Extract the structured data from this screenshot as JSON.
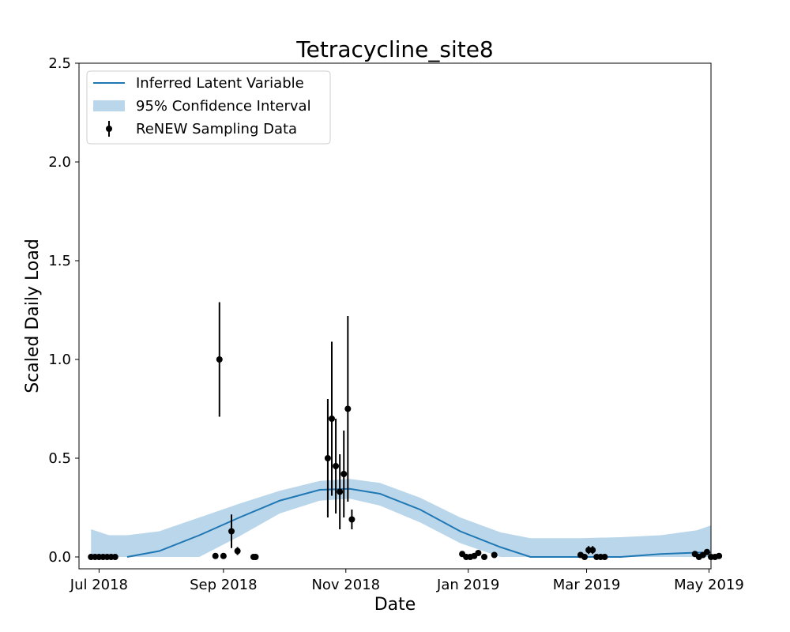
{
  "chart_data": {
    "type": "line",
    "title": "Tetracycline_site8",
    "xlabel": "Date",
    "ylabel": "Scaled Daily Load",
    "x_unit": "days since 2018-07-01",
    "xlim": [
      -10,
      305
    ],
    "ylim": [
      -0.06,
      2.5
    ],
    "yticks": [
      0.0,
      0.5,
      1.0,
      1.5,
      2.0,
      2.5
    ],
    "ytick_labels": [
      "0.0",
      "0.5",
      "1.0",
      "1.5",
      "2.0",
      "2.5"
    ],
    "xticks": [
      0,
      62,
      123,
      184,
      243,
      304
    ],
    "xtick_labels": [
      "Jul 2018",
      "Sep 2018",
      "Nov 2018",
      "Jan 2019",
      "Mar 2019",
      "May 2019"
    ],
    "legend": {
      "position": "top-left",
      "entries": [
        "Inferred Latent Variable",
        "95% Confidence Interval",
        "ReNEW Sampling Data"
      ]
    },
    "colors": {
      "line": "#1f77b4",
      "band": "#bad6ea",
      "points": "#000000"
    },
    "series": [
      {
        "name": "Inferred Latent Variable",
        "kind": "line",
        "x": [
          14,
          30,
          50,
          70,
          90,
          110,
          125,
          140,
          160,
          180,
          200,
          215,
          240,
          260,
          280,
          298,
          305
        ],
        "y": [
          0.0,
          0.03,
          0.11,
          0.2,
          0.285,
          0.34,
          0.345,
          0.32,
          0.24,
          0.13,
          0.05,
          0.0,
          0.0,
          0.0,
          0.015,
          0.022,
          0.022
        ]
      },
      {
        "name": "95% Confidence Interval",
        "kind": "band",
        "x": [
          -4,
          5,
          14,
          30,
          50,
          70,
          90,
          110,
          125,
          140,
          160,
          180,
          200,
          215,
          240,
          260,
          280,
          298,
          305
        ],
        "upper": [
          0.14,
          0.11,
          0.11,
          0.13,
          0.2,
          0.27,
          0.335,
          0.385,
          0.395,
          0.375,
          0.3,
          0.2,
          0.125,
          0.095,
          0.095,
          0.1,
          0.11,
          0.135,
          0.16
        ],
        "lower": [
          0.0,
          0.0,
          0.0,
          0.0,
          0.0,
          0.105,
          0.22,
          0.285,
          0.295,
          0.26,
          0.175,
          0.07,
          0.0,
          0.0,
          0.0,
          0.0,
          0.0,
          0.0,
          0.0
        ]
      },
      {
        "name": "ReNEW Sampling Data",
        "kind": "errorbar",
        "points": [
          {
            "x": -4,
            "y": 0.0,
            "err": 0.0
          },
          {
            "x": -2,
            "y": 0.0,
            "err": 0.0
          },
          {
            "x": 0,
            "y": 0.0,
            "err": 0.0
          },
          {
            "x": 2,
            "y": 0.0,
            "err": 0.0
          },
          {
            "x": 4,
            "y": 0.0,
            "err": 0.0
          },
          {
            "x": 6,
            "y": 0.0,
            "err": 0.0
          },
          {
            "x": 8,
            "y": 0.0,
            "err": 0.0
          },
          {
            "x": 58,
            "y": 0.005,
            "err": 0.0
          },
          {
            "x": 60,
            "y": 1.0,
            "err": 0.29
          },
          {
            "x": 62,
            "y": 0.005,
            "err": 0.0
          },
          {
            "x": 66,
            "y": 0.13,
            "err": 0.085
          },
          {
            "x": 69,
            "y": 0.03,
            "err": 0.02
          },
          {
            "x": 77,
            "y": 0.0,
            "err": 0.0
          },
          {
            "x": 78,
            "y": 0.0,
            "err": 0.0
          },
          {
            "x": 114,
            "y": 0.5,
            "err": 0.3
          },
          {
            "x": 116,
            "y": 0.7,
            "err": 0.39
          },
          {
            "x": 118,
            "y": 0.46,
            "err": 0.24
          },
          {
            "x": 120,
            "y": 0.33,
            "err": 0.19
          },
          {
            "x": 122,
            "y": 0.42,
            "err": 0.22
          },
          {
            "x": 124,
            "y": 0.75,
            "err": 0.47
          },
          {
            "x": 126,
            "y": 0.19,
            "err": 0.05
          },
          {
            "x": 181,
            "y": 0.015,
            "err": 0.0
          },
          {
            "x": 183,
            "y": 0.0,
            "err": 0.0
          },
          {
            "x": 185,
            "y": 0.0,
            "err": 0.0
          },
          {
            "x": 187,
            "y": 0.005,
            "err": 0.0
          },
          {
            "x": 189,
            "y": 0.02,
            "err": 0.0
          },
          {
            "x": 192,
            "y": 0.0,
            "err": 0.0
          },
          {
            "x": 197,
            "y": 0.01,
            "err": 0.0
          },
          {
            "x": 240,
            "y": 0.01,
            "err": 0.0
          },
          {
            "x": 242,
            "y": 0.0,
            "err": 0.0
          },
          {
            "x": 244,
            "y": 0.035,
            "err": 0.02
          },
          {
            "x": 246,
            "y": 0.035,
            "err": 0.02
          },
          {
            "x": 248,
            "y": 0.0,
            "err": 0.0
          },
          {
            "x": 250,
            "y": 0.0,
            "err": 0.0
          },
          {
            "x": 252,
            "y": 0.0,
            "err": 0.0
          },
          {
            "x": 297,
            "y": 0.015,
            "err": 0.0
          },
          {
            "x": 299,
            "y": 0.0,
            "err": 0.0
          },
          {
            "x": 301,
            "y": 0.01,
            "err": 0.0
          },
          {
            "x": 303,
            "y": 0.025,
            "err": 0.0
          },
          {
            "x": 305,
            "y": 0.0,
            "err": 0.0
          },
          {
            "x": 307,
            "y": 0.0,
            "err": 0.0
          },
          {
            "x": 309,
            "y": 0.005,
            "err": 0.0
          }
        ]
      }
    ]
  }
}
